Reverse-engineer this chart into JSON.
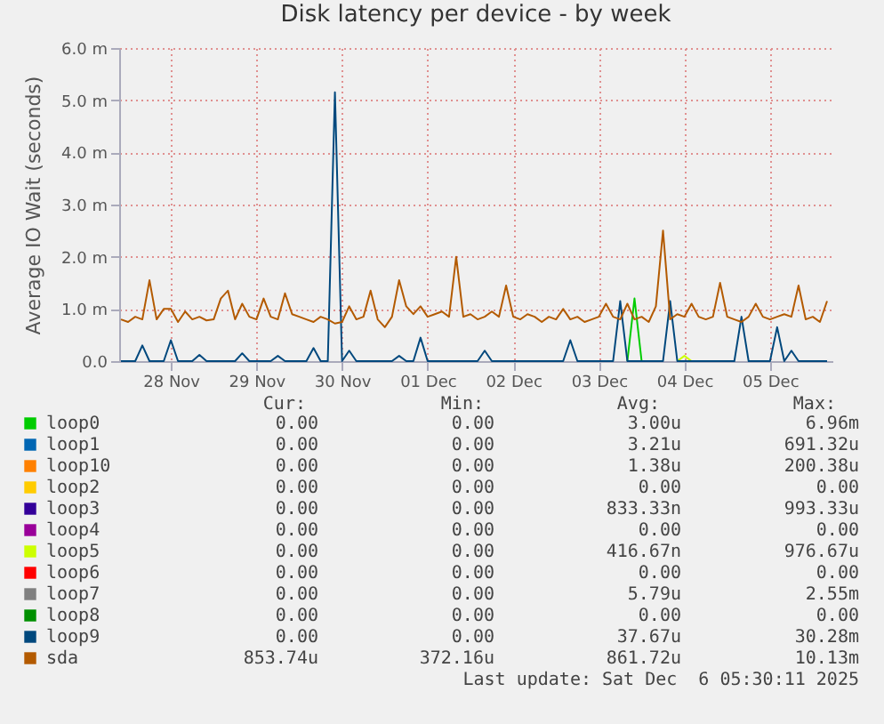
{
  "chart_data": {
    "type": "line",
    "title": "Disk latency per device - by week",
    "ylabel": "Average IO Wait (seconds)",
    "x": [
      "2025-11-27T22:00",
      "2025-11-28T00:00",
      "2025-11-28T02:00",
      "2025-11-28T04:00",
      "2025-11-28T06:00",
      "2025-11-28T08:00",
      "2025-11-28T10:00",
      "2025-11-28T12:00",
      "2025-11-28T14:00",
      "2025-11-28T16:00",
      "2025-11-28T18:00",
      "2025-11-28T20:00",
      "2025-11-28T22:00",
      "2025-11-29T00:00",
      "2025-11-29T02:00",
      "2025-11-29T04:00",
      "2025-11-29T06:00",
      "2025-11-29T08:00",
      "2025-11-29T10:00",
      "2025-11-29T12:00",
      "2025-11-29T14:00",
      "2025-11-29T16:00",
      "2025-11-29T18:00",
      "2025-11-29T20:00",
      "2025-11-29T22:00",
      "2025-11-30T00:00",
      "2025-11-30T02:00",
      "2025-11-30T04:00",
      "2025-11-30T06:00",
      "2025-11-30T08:00",
      "2025-11-30T10:00",
      "2025-11-30T12:00",
      "2025-11-30T14:00",
      "2025-11-30T16:00",
      "2025-11-30T18:00",
      "2025-11-30T20:00",
      "2025-11-30T22:00",
      "2025-12-01T00:00",
      "2025-12-01T02:00",
      "2025-12-01T04:00",
      "2025-12-01T06:00",
      "2025-12-01T08:00",
      "2025-12-01T10:00",
      "2025-12-01T12:00",
      "2025-12-01T14:00",
      "2025-12-01T16:00",
      "2025-12-01T18:00",
      "2025-12-01T20:00",
      "2025-12-01T22:00",
      "2025-12-02T00:00",
      "2025-12-02T02:00",
      "2025-12-02T04:00",
      "2025-12-02T06:00",
      "2025-12-02T08:00",
      "2025-12-02T10:00",
      "2025-12-02T12:00",
      "2025-12-02T14:00",
      "2025-12-02T16:00",
      "2025-12-02T18:00",
      "2025-12-02T20:00",
      "2025-12-02T22:00",
      "2025-12-03T00:00",
      "2025-12-03T02:00",
      "2025-12-03T04:00",
      "2025-12-03T06:00",
      "2025-12-03T08:00",
      "2025-12-03T10:00",
      "2025-12-03T12:00",
      "2025-12-03T14:00",
      "2025-12-03T16:00",
      "2025-12-03T18:00",
      "2025-12-03T20:00",
      "2025-12-03T22:00",
      "2025-12-04T00:00",
      "2025-12-04T02:00",
      "2025-12-04T04:00",
      "2025-12-04T06:00",
      "2025-12-04T08:00",
      "2025-12-04T10:00",
      "2025-12-04T12:00",
      "2025-12-04T14:00",
      "2025-12-04T16:00",
      "2025-12-04T18:00",
      "2025-12-04T20:00",
      "2025-12-04T22:00",
      "2025-12-05T00:00",
      "2025-12-05T02:00",
      "2025-12-05T04:00",
      "2025-12-05T06:00",
      "2025-12-05T08:00",
      "2025-12-05T10:00",
      "2025-12-05T12:00",
      "2025-12-05T14:00",
      "2025-12-05T16:00",
      "2025-12-05T18:00",
      "2025-12-05T20:00",
      "2025-12-05T22:00",
      "2025-12-06T00:00",
      "2025-12-06T02:00",
      "2025-12-06T04:00"
    ],
    "series": [
      {
        "name": "loop0",
        "color": "#00cc00",
        "x": [
          "2025-12-03T20:00",
          "2025-12-03T22:00",
          "2025-12-04T00:00"
        ],
        "values": [
          0,
          1.2,
          0
        ]
      },
      {
        "name": "loop1",
        "color": "#0066b3",
        "values": [
          null,
          null,
          null,
          null,
          null,
          null,
          null,
          null,
          null,
          null,
          null,
          null,
          null,
          null,
          null,
          null,
          null,
          null,
          null,
          null,
          null,
          null,
          null,
          null,
          null,
          null,
          null,
          null,
          null,
          null,
          null,
          null,
          null,
          null,
          null,
          null,
          null,
          null,
          null,
          null,
          null,
          null,
          null,
          null,
          null,
          null,
          null,
          null,
          null,
          null,
          null,
          null,
          null,
          null,
          null,
          null,
          null,
          null,
          null,
          null,
          null,
          null,
          null,
          null,
          null,
          null,
          null,
          null,
          null,
          null,
          null,
          null,
          null,
          null,
          null,
          null,
          null,
          null,
          null,
          null,
          null,
          null,
          null,
          null,
          null,
          null,
          null,
          null,
          null,
          null,
          null,
          null,
          null,
          null,
          null,
          null,
          null,
          null,
          null,
          null
        ]
      },
      {
        "name": "loop10",
        "color": "#ff8000",
        "values": [
          null,
          null,
          null,
          null,
          null,
          null,
          null,
          null,
          null,
          null,
          null,
          null,
          null,
          null,
          null,
          null,
          null,
          null,
          null,
          null,
          null,
          null,
          null,
          null,
          null,
          null,
          null,
          null,
          null,
          null,
          null,
          null,
          null,
          null,
          null,
          null,
          null,
          null,
          null,
          null,
          null,
          null,
          null,
          null,
          null,
          null,
          null,
          null,
          null,
          null,
          null,
          null,
          null,
          null,
          null,
          null,
          null,
          null,
          null,
          null,
          null,
          null,
          null,
          null,
          null,
          null,
          null,
          null,
          null,
          null,
          null,
          null,
          null,
          null,
          null,
          null,
          null,
          null,
          null,
          null,
          null,
          null,
          null,
          null,
          null,
          null,
          null,
          null,
          null,
          null,
          null,
          null,
          null,
          null,
          null,
          null,
          null,
          null,
          null,
          null
        ]
      },
      {
        "name": "loop2",
        "color": "#ffcc00",
        "values": [
          null,
          null,
          null,
          null,
          null,
          null,
          null,
          null,
          null,
          null,
          null,
          null,
          null,
          null,
          null,
          null,
          null,
          null,
          null,
          null,
          null,
          null,
          null,
          null,
          null,
          null,
          null,
          null,
          null,
          null,
          null,
          null,
          null,
          null,
          null,
          null,
          null,
          null,
          null,
          null,
          null,
          null,
          null,
          null,
          null,
          null,
          null,
          null,
          null,
          null,
          null,
          null,
          null,
          null,
          null,
          null,
          null,
          null,
          null,
          null,
          null,
          null,
          null,
          null,
          null,
          null,
          null,
          null,
          null,
          null,
          null,
          null,
          null,
          null,
          null,
          null,
          null,
          null,
          null,
          null,
          null,
          null,
          null,
          null,
          null,
          null,
          null,
          null,
          null,
          null,
          null,
          null,
          null,
          null,
          null,
          null,
          null,
          null,
          null,
          null
        ]
      },
      {
        "name": "loop3",
        "color": "#330099",
        "values": [
          null,
          null,
          null,
          null,
          null,
          null,
          null,
          null,
          null,
          null,
          null,
          null,
          null,
          null,
          null,
          null,
          null,
          null,
          null,
          null,
          null,
          null,
          null,
          null,
          null,
          null,
          null,
          null,
          null,
          null,
          null,
          null,
          null,
          null,
          null,
          null,
          null,
          null,
          null,
          null,
          null,
          null,
          null,
          null,
          null,
          null,
          null,
          null,
          null,
          null,
          null,
          null,
          null,
          null,
          null,
          null,
          null,
          null,
          null,
          null,
          null,
          null,
          null,
          null,
          null,
          null,
          null,
          null,
          null,
          null,
          null,
          null,
          null,
          null,
          null,
          null,
          null,
          null,
          null,
          null,
          null,
          null,
          null,
          null,
          null,
          null,
          null,
          null,
          null,
          null,
          null,
          null,
          null,
          null,
          null,
          null,
          null,
          null,
          null,
          null
        ]
      },
      {
        "name": "loop4",
        "color": "#990099",
        "values": [
          null,
          null,
          null,
          null,
          null,
          null,
          null,
          null,
          null,
          null,
          null,
          null,
          null,
          null,
          null,
          null,
          null,
          null,
          null,
          null,
          null,
          null,
          null,
          null,
          null,
          null,
          null,
          null,
          null,
          null,
          null,
          null,
          null,
          null,
          null,
          null,
          null,
          null,
          null,
          null,
          null,
          null,
          null,
          null,
          null,
          null,
          null,
          null,
          null,
          null,
          null,
          null,
          null,
          null,
          null,
          null,
          null,
          null,
          null,
          null,
          null,
          null,
          null,
          null,
          null,
          null,
          null,
          null,
          null,
          null,
          null,
          null,
          null,
          null,
          null,
          null,
          null,
          null,
          null,
          null,
          null,
          null,
          null,
          null,
          null,
          null,
          null,
          null,
          null,
          null,
          null,
          null,
          null,
          null,
          null,
          null,
          null,
          null,
          null,
          null
        ]
      },
      {
        "name": "loop5",
        "color": "#ccff00",
        "x": [
          "2025-12-04T10:00",
          "2025-12-04T12:00",
          "2025-12-04T14:00"
        ],
        "values": [
          0,
          0.1,
          0
        ]
      },
      {
        "name": "loop6",
        "color": "#ff0000",
        "values": [
          null,
          null,
          null,
          null,
          null,
          null,
          null,
          null,
          null,
          null,
          null,
          null,
          null,
          null,
          null,
          null,
          null,
          null,
          null,
          null,
          null,
          null,
          null,
          null,
          null,
          null,
          null,
          null,
          null,
          null,
          null,
          null,
          null,
          null,
          null,
          null,
          null,
          null,
          null,
          null,
          null,
          null,
          null,
          null,
          null,
          null,
          null,
          null,
          null,
          null,
          null,
          null,
          null,
          null,
          null,
          null,
          null,
          null,
          null,
          null,
          null,
          null,
          null,
          null,
          null,
          null,
          null,
          null,
          null,
          null,
          null,
          null,
          null,
          null,
          null,
          null,
          null,
          null,
          null,
          null,
          null,
          null,
          null,
          null,
          null,
          null,
          null,
          null,
          null,
          null,
          null,
          null,
          null,
          null,
          null,
          null,
          null,
          null,
          null,
          null
        ]
      },
      {
        "name": "loop7",
        "color": "#808080",
        "values": [
          null,
          null,
          null,
          null,
          null,
          null,
          null,
          null,
          null,
          null,
          null,
          null,
          null,
          null,
          null,
          null,
          null,
          null,
          null,
          null,
          null,
          null,
          null,
          null,
          null,
          null,
          null,
          null,
          null,
          null,
          null,
          null,
          null,
          null,
          null,
          null,
          null,
          null,
          null,
          null,
          null,
          null,
          null,
          null,
          null,
          null,
          null,
          null,
          null,
          null,
          null,
          null,
          null,
          null,
          null,
          null,
          null,
          null,
          null,
          null,
          null,
          null,
          null,
          null,
          null,
          null,
          null,
          null,
          null,
          null,
          null,
          null,
          null,
          null,
          null,
          null,
          null,
          null,
          null,
          null,
          null,
          null,
          null,
          null,
          null,
          null,
          null,
          null,
          null,
          null,
          null,
          null,
          null,
          null,
          null,
          null,
          null,
          null,
          null,
          null
        ]
      },
      {
        "name": "loop8",
        "color": "#008f00",
        "values": [
          null,
          null,
          null,
          null,
          null,
          null,
          null,
          null,
          null,
          null,
          null,
          null,
          null,
          null,
          null,
          null,
          null,
          null,
          null,
          null,
          null,
          null,
          null,
          null,
          null,
          null,
          null,
          null,
          null,
          null,
          null,
          null,
          null,
          null,
          null,
          null,
          null,
          null,
          null,
          null,
          null,
          null,
          null,
          null,
          null,
          null,
          null,
          null,
          null,
          null,
          null,
          null,
          null,
          null,
          null,
          null,
          null,
          null,
          null,
          null,
          null,
          null,
          null,
          null,
          null,
          null,
          null,
          null,
          null,
          null,
          null,
          null,
          null,
          null,
          null,
          null,
          null,
          null,
          null,
          null,
          null,
          null,
          null,
          null,
          null,
          null,
          null,
          null,
          null,
          null,
          null,
          null,
          null,
          null,
          null,
          null,
          null,
          null,
          null,
          null
        ]
      },
      {
        "name": "loop9",
        "color": "#00487d",
        "values": [
          0,
          0,
          0,
          0.3,
          0,
          0,
          0,
          0.4,
          0,
          0,
          0,
          0.12,
          0,
          0,
          0,
          0,
          0,
          0.15,
          0,
          0,
          0,
          0,
          0.1,
          0,
          0,
          0,
          0,
          0.25,
          0,
          0,
          5.15,
          0,
          0.2,
          0,
          0,
          0,
          0,
          0,
          0,
          0.1,
          0,
          0,
          0.45,
          0,
          0,
          0,
          0,
          0,
          0,
          0,
          0,
          0.2,
          0,
          0,
          0,
          0,
          0,
          0,
          0,
          0,
          0,
          0,
          0,
          0.4,
          0,
          0,
          0,
          0,
          0,
          0,
          1.15,
          0,
          0,
          0,
          0,
          0,
          0,
          1.15,
          0,
          0,
          0,
          0,
          0,
          0,
          0,
          0,
          0,
          0.85,
          0,
          0,
          0,
          0,
          0.65,
          0,
          0.2,
          0,
          0,
          0,
          0,
          0
        ]
      },
      {
        "name": "sda",
        "color": "#b35a00",
        "values": [
          0.8,
          0.75,
          0.85,
          0.8,
          1.55,
          0.8,
          1.0,
          1.0,
          0.75,
          0.95,
          0.8,
          0.85,
          0.78,
          0.8,
          1.2,
          1.35,
          0.8,
          1.1,
          0.85,
          0.8,
          1.2,
          0.85,
          0.8,
          1.3,
          0.9,
          0.85,
          0.8,
          0.75,
          0.85,
          0.8,
          0.72,
          0.75,
          1.05,
          0.8,
          0.85,
          1.35,
          0.8,
          0.65,
          0.85,
          1.55,
          1.05,
          0.9,
          1.05,
          0.85,
          0.9,
          0.95,
          0.85,
          2.0,
          0.85,
          0.9,
          0.8,
          0.85,
          0.95,
          0.85,
          1.45,
          0.85,
          0.8,
          0.9,
          0.85,
          0.75,
          0.85,
          0.8,
          1.0,
          0.8,
          0.85,
          0.75,
          0.8,
          0.85,
          1.1,
          0.85,
          0.8,
          1.1,
          0.8,
          0.85,
          0.75,
          1.05,
          2.5,
          0.8,
          0.9,
          0.85,
          1.1,
          0.85,
          0.8,
          0.85,
          1.5,
          0.85,
          0.8,
          0.75,
          0.85,
          1.1,
          0.85,
          0.8,
          0.85,
          0.9,
          0.85,
          1.45,
          0.8,
          0.85,
          0.75,
          1.15
        ]
      }
    ],
    "xlim": [
      "2025-11-27T21:30",
      "2025-12-06T05:30"
    ],
    "xticks": [
      {
        "value": "2025-11-28T12:00",
        "label": "28 Nov"
      },
      {
        "value": "2025-11-29T12:00",
        "label": "29 Nov"
      },
      {
        "value": "2025-11-30T12:00",
        "label": "30 Nov"
      },
      {
        "value": "2025-12-01T12:00",
        "label": "01 Dec"
      },
      {
        "value": "2025-12-02T12:00",
        "label": "02 Dec"
      },
      {
        "value": "2025-12-03T12:00",
        "label": "03 Dec"
      },
      {
        "value": "2025-12-04T12:00",
        "label": "04 Dec"
      },
      {
        "value": "2025-12-05T12:00",
        "label": "05 Dec"
      }
    ],
    "ylim": [
      0,
      6
    ],
    "yticks": [
      {
        "value": 0,
        "label": "0.0"
      },
      {
        "value": 1,
        "label": "1.0 m"
      },
      {
        "value": 2,
        "label": "2.0 m"
      },
      {
        "value": 3,
        "label": "3.0 m"
      },
      {
        "value": 4,
        "label": "4.0 m"
      },
      {
        "value": 5,
        "label": "5.0 m"
      },
      {
        "value": 6,
        "label": "6.0 m"
      }
    ],
    "grid": true,
    "legend": "bottom",
    "marker": "none",
    "line_style": "solid",
    "annotations": [
      "Cur:",
      "Min:",
      "Avg:",
      "Max:",
      "0.00",
      "0.00",
      "3.00u",
      "6.96m",
      "0.00",
      "0.00",
      "3.21u",
      "691.32u",
      "0.00",
      "0.00",
      "1.38u",
      "200.38u",
      "0.00",
      "0.00",
      "0.00",
      "0.00",
      "0.00",
      "0.00",
      "833.33n",
      "993.33u",
      "0.00",
      "0.00",
      "0.00",
      "0.00",
      "0.00",
      "0.00",
      "416.67n",
      "976.67u",
      "0.00",
      "0.00",
      "0.00",
      "0.00",
      "0.00",
      "0.00",
      "5.79u",
      "2.55m",
      "0.00",
      "0.00",
      "0.00",
      "0.00",
      "0.00",
      "0.00",
      "37.67u",
      "30.28m",
      "853.74u",
      "372.16u",
      "861.72u",
      "10.13m",
      "Last update: Sat Dec  6 05:30:11 2025"
    ]
  }
}
